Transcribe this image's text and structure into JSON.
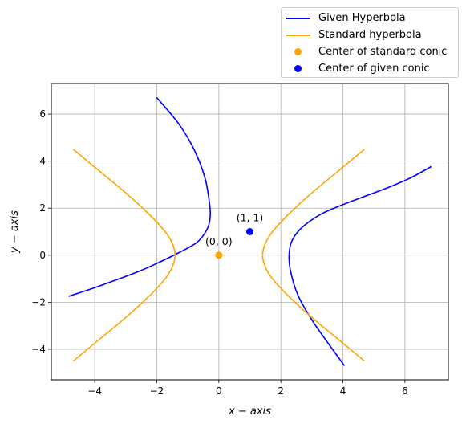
{
  "chart_data": {
    "type": "line",
    "title": "",
    "xlabel": "x − axis",
    "ylabel": "y − axis",
    "xlim": [
      -5.4,
      7.4
    ],
    "ylim": [
      -5.3,
      7.3
    ],
    "xticks": [
      -4,
      -2,
      0,
      2,
      4,
      6
    ],
    "yticks": [
      -4,
      -2,
      0,
      2,
      4,
      6
    ],
    "xtick_labels": [
      "−4",
      "−2",
      "0",
      "2",
      "4",
      "6"
    ],
    "ytick_labels": [
      "−4",
      "−2",
      "0",
      "2",
      "4",
      "6"
    ],
    "grid": true,
    "legend_position": "above-right",
    "series": [
      {
        "name": "Given Hyperbola",
        "color": "#0000ff",
        "branches": [
          {
            "x": [
              -2.0,
              -1.3,
              -0.8,
              -0.45,
              -0.3,
              -0.28,
              -0.38,
              -0.7,
              -1.3,
              -2.0,
              -2.6,
              -3.2,
              -4.0,
              -4.85
            ],
            "y": [
              6.7,
              5.6,
              4.5,
              3.3,
              2.2,
              1.6,
              1.1,
              0.55,
              0.1,
              -0.35,
              -0.7,
              -1.0,
              -1.38,
              -1.75
            ]
          },
          {
            "x": [
              4.05,
              3.5,
              3.0,
              2.55,
              2.3,
              2.27,
              2.37,
              2.7,
              3.3,
              4.0,
              4.8,
              5.5,
              6.2,
              6.85
            ],
            "y": [
              -4.7,
              -3.7,
              -2.75,
              -1.7,
              -0.6,
              0.1,
              0.65,
              1.2,
              1.75,
              2.15,
              2.55,
              2.9,
              3.3,
              3.77
            ]
          }
        ]
      },
      {
        "name": "Standard hyperbola",
        "color": "#ffa500",
        "branches": [
          {
            "x": [
              -4.69,
              -4.0,
              -3.0,
              -2.24,
              -1.73,
              -1.5,
              -1.41,
              -1.5,
              -1.73,
              -2.24,
              -3.0,
              -4.0,
              -4.69
            ],
            "y": [
              4.5,
              3.74,
              2.65,
              1.73,
              1.0,
              0.5,
              0.0,
              -0.5,
              -1.0,
              -1.73,
              -2.65,
              -3.74,
              -4.5
            ]
          },
          {
            "x": [
              4.69,
              4.0,
              3.0,
              2.24,
              1.73,
              1.5,
              1.41,
              1.5,
              1.73,
              2.24,
              3.0,
              4.0,
              4.69
            ],
            "y": [
              4.5,
              3.74,
              2.65,
              1.73,
              1.0,
              0.5,
              0.0,
              -0.5,
              -1.0,
              -1.73,
              -2.65,
              -3.74,
              -4.5
            ]
          }
        ]
      }
    ],
    "points": [
      {
        "name": "Center of standard conic",
        "x": 0,
        "y": 0,
        "color": "#ffa500",
        "label": "(0, 0)"
      },
      {
        "name": "Center of given conic",
        "x": 1,
        "y": 1,
        "color": "#0000ff",
        "label": "(1, 1)"
      }
    ]
  }
}
